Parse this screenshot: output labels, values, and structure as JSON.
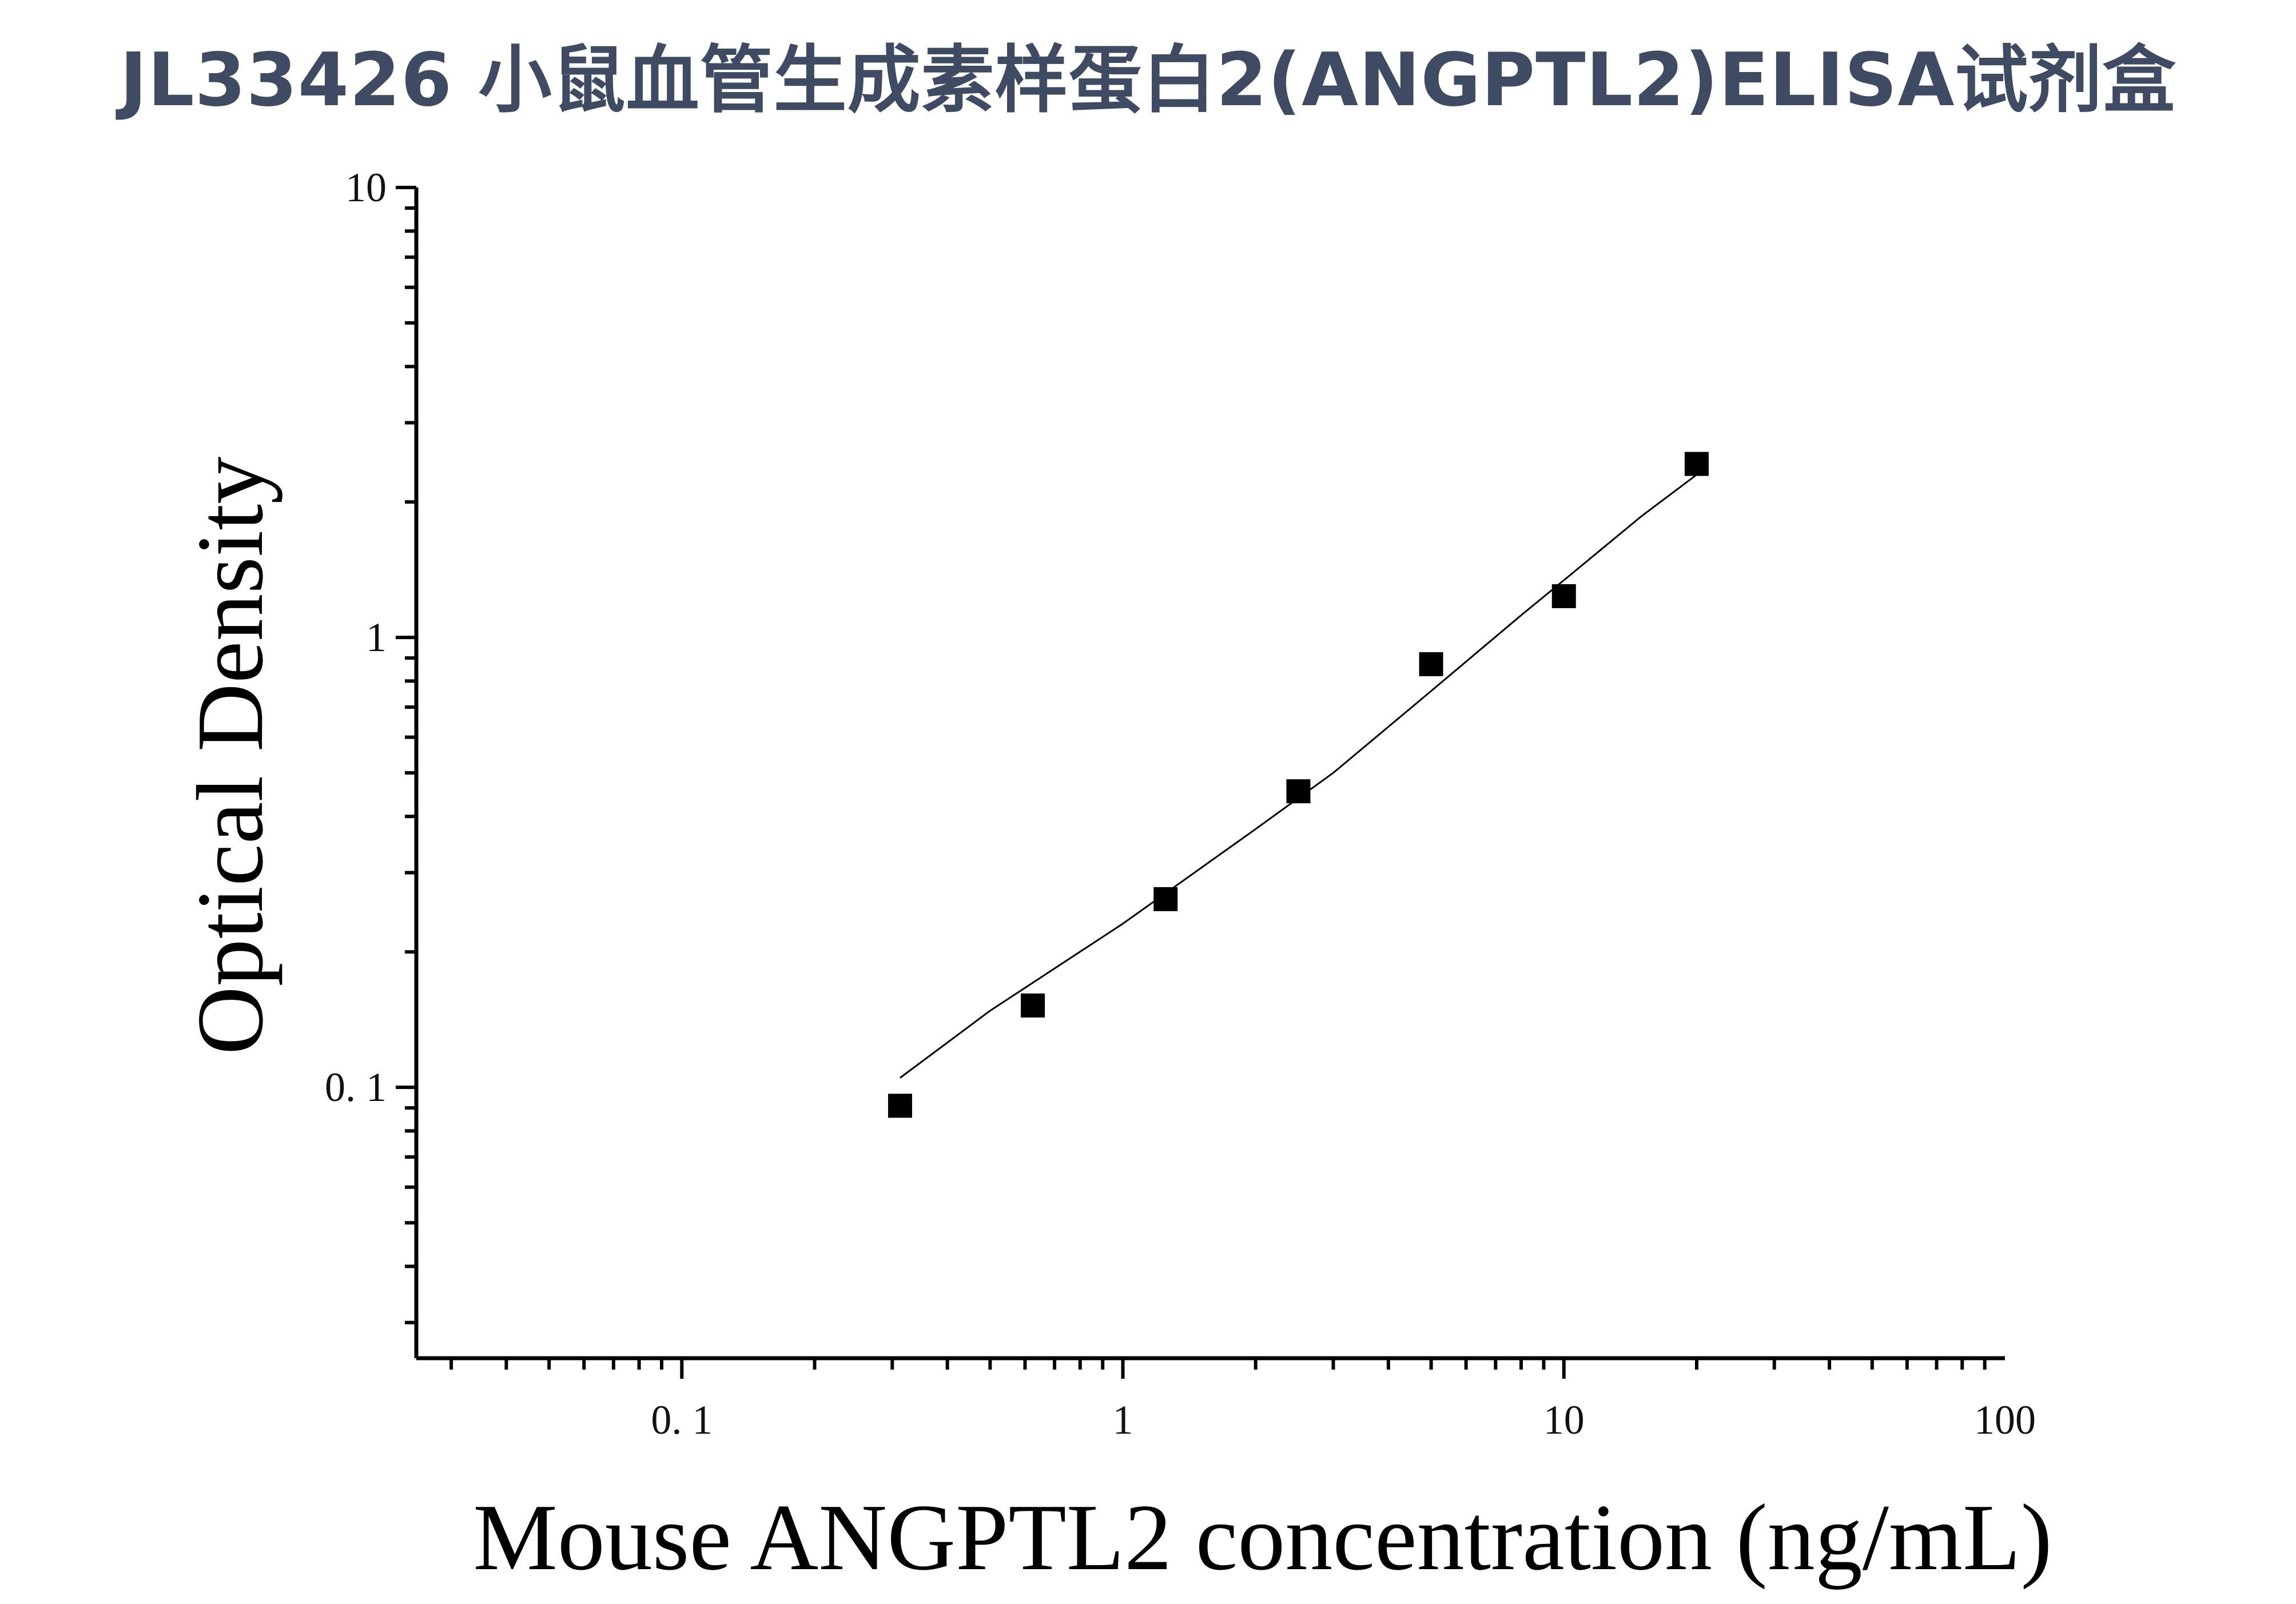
{
  "title": "JL33426 小鼠血管生成素样蛋白2(ANGPTL2)ELISA试剂盒",
  "colors": {
    "title": "#3f4a63",
    "axis": "#000000",
    "marker": "#000000"
  },
  "chart_data": {
    "type": "scatter",
    "xlabel": "Mouse ANGPTL2 concentration (ng/mL)",
    "ylabel": "Optical Density",
    "xscale": "log",
    "yscale": "log",
    "xlim": [
      0.025,
      100
    ],
    "ylim": [
      0.025,
      10
    ],
    "xticks": [
      0.1,
      1,
      10,
      100
    ],
    "xtick_labels": [
      "0. 1",
      "1",
      "10",
      "100"
    ],
    "yticks": [
      0.1,
      1,
      10
    ],
    "ytick_labels": [
      "0. 1",
      "1",
      "10"
    ],
    "grid": false,
    "legend": false,
    "series": [
      {
        "marker": "square",
        "x": [
          0.3125,
          0.625,
          1.25,
          2.5,
          5,
          10,
          20
        ],
        "y": [
          0.091,
          0.152,
          0.262,
          0.455,
          0.872,
          1.235,
          2.43
        ]
      }
    ],
    "fit_curve": {
      "x": [
        0.3125,
        0.5,
        1,
        2,
        3,
        5,
        8,
        10,
        15,
        20
      ],
      "y": [
        0.105,
        0.148,
        0.231,
        0.375,
        0.5,
        0.76,
        1.12,
        1.34,
        1.86,
        2.3
      ]
    }
  }
}
